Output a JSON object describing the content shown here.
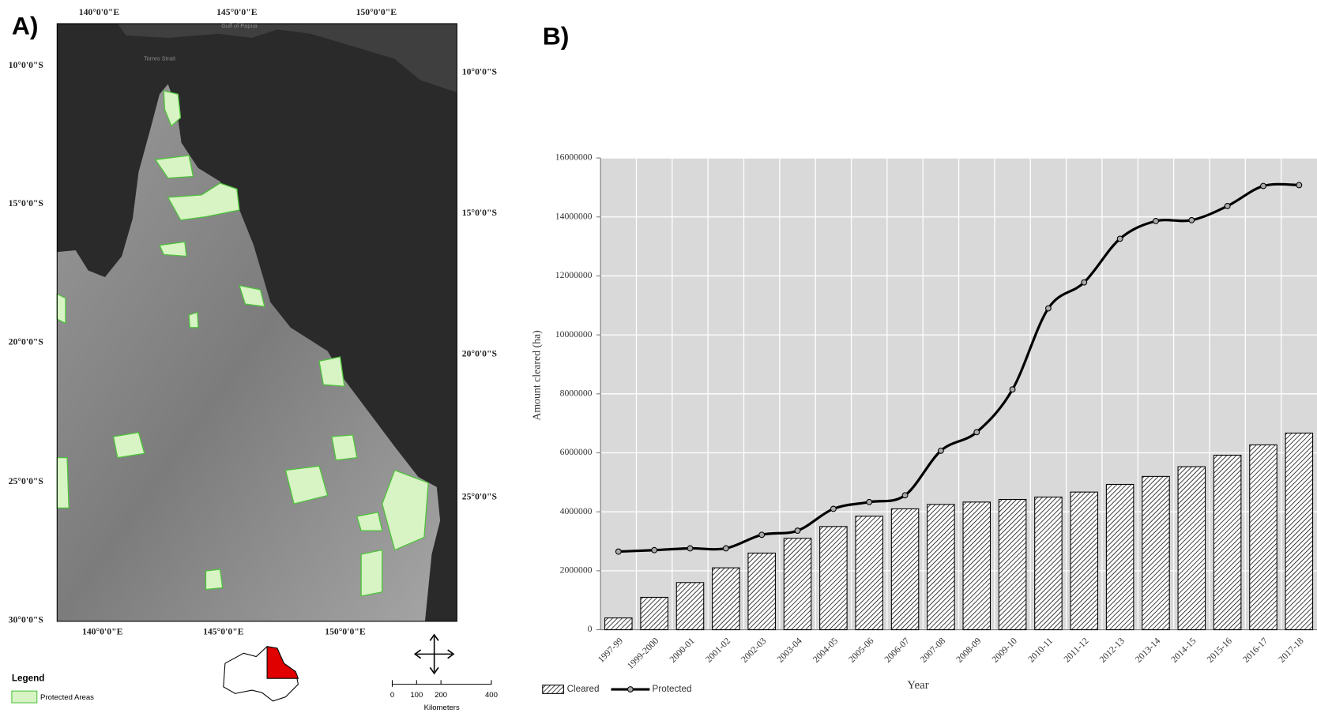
{
  "panel_labels": [
    "A)",
    "B)"
  ],
  "map": {
    "lon_labels_top": [
      "140°0'0\"E",
      "145°0'0\"E",
      "150°0'0\"E"
    ],
    "lon_labels_bottom": [
      "140°0'0\"E",
      "145°0'0\"E",
      "150°0'0\"E"
    ],
    "lat_labels_left": [
      "10°0'0\"S",
      "15°0'0\"S",
      "20°0'0\"S",
      "25°0'0\"S",
      "30°0'0\"S"
    ],
    "lat_labels_right": [
      "10°0'0\"S",
      "15°0'0\"S",
      "20°0'0\"S",
      "25°0'0\"S"
    ],
    "place_labels": [
      "Gulf of Papua",
      "Torres Strait"
    ],
    "legend_title": "Legend",
    "legend_item": "Protected Areas",
    "scale_labels": [
      "0",
      "100",
      "200",
      "400"
    ],
    "scale_unit": "Kilometers"
  },
  "chart_data": {
    "type": "bar",
    "y_label": "Amount cleared (ha)",
    "x_label": "Year",
    "categories": [
      "1997-99",
      "1999-2000",
      "2000-01",
      "2001-02",
      "2002-03",
      "2003-04",
      "2004-05",
      "2005-06",
      "2006-07",
      "2007-08",
      "2008-09",
      "2009-10",
      "2010-11",
      "2011-12",
      "2012-13",
      "2013-14",
      "2014-15",
      "2015-16",
      "2016-17",
      "2017-18"
    ],
    "series": [
      {
        "name": "Cleared",
        "type": "bar",
        "color": "#000000",
        "values": [
          400000,
          1100000,
          1600000,
          2100000,
          2600000,
          3100000,
          3500000,
          3850000,
          4100000,
          4250000,
          4330000,
          4420000,
          4500000,
          4670000,
          4930000,
          5200000,
          5530000,
          5920000,
          6270000,
          6670000
        ]
      },
      {
        "name": "Protected",
        "type": "line",
        "color": "#000000",
        "values": [
          2650000,
          2700000,
          2760000,
          2760000,
          3220000,
          3360000,
          4100000,
          4330000,
          4560000,
          6070000,
          6700000,
          8150000,
          10900000,
          11780000,
          13260000,
          13860000,
          13890000,
          14370000,
          15050000,
          15080000
        ]
      }
    ],
    "ylim": [
      0,
      16000000
    ],
    "yticks": [
      0,
      2000000,
      4000000,
      6000000,
      8000000,
      10000000,
      12000000,
      14000000,
      16000000
    ],
    "grid": true,
    "legend": "bottom-left"
  }
}
